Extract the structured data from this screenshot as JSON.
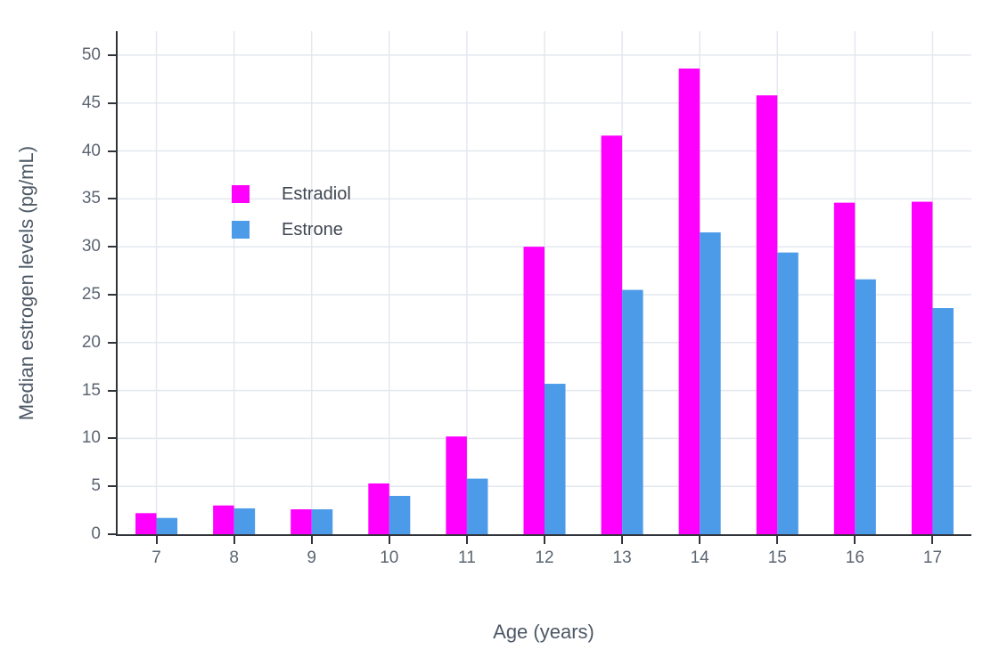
{
  "chart_data": {
    "type": "bar",
    "title": "",
    "xlabel": "Age (years)",
    "ylabel": "Median estrogen levels (pg/mL)",
    "categories": [
      "7",
      "8",
      "9",
      "10",
      "11",
      "12",
      "13",
      "14",
      "15",
      "16",
      "17"
    ],
    "series": [
      {
        "name": "Estradiol",
        "color": "#FF00FF",
        "values": [
          2.2,
          3.0,
          2.6,
          5.3,
          10.2,
          30.0,
          41.6,
          48.6,
          45.8,
          34.6,
          34.7
        ]
      },
      {
        "name": "Estrone",
        "color": "#4C9BE8",
        "values": [
          1.7,
          2.7,
          2.6,
          4.0,
          5.8,
          15.7,
          25.5,
          31.5,
          29.4,
          26.6,
          23.6
        ]
      }
    ],
    "ylim": [
      0,
      52.5
    ],
    "yticks": [
      0,
      5,
      10,
      15,
      20,
      25,
      30,
      35,
      40,
      45,
      50
    ],
    "grid": true,
    "legend_position": "inside-left"
  }
}
